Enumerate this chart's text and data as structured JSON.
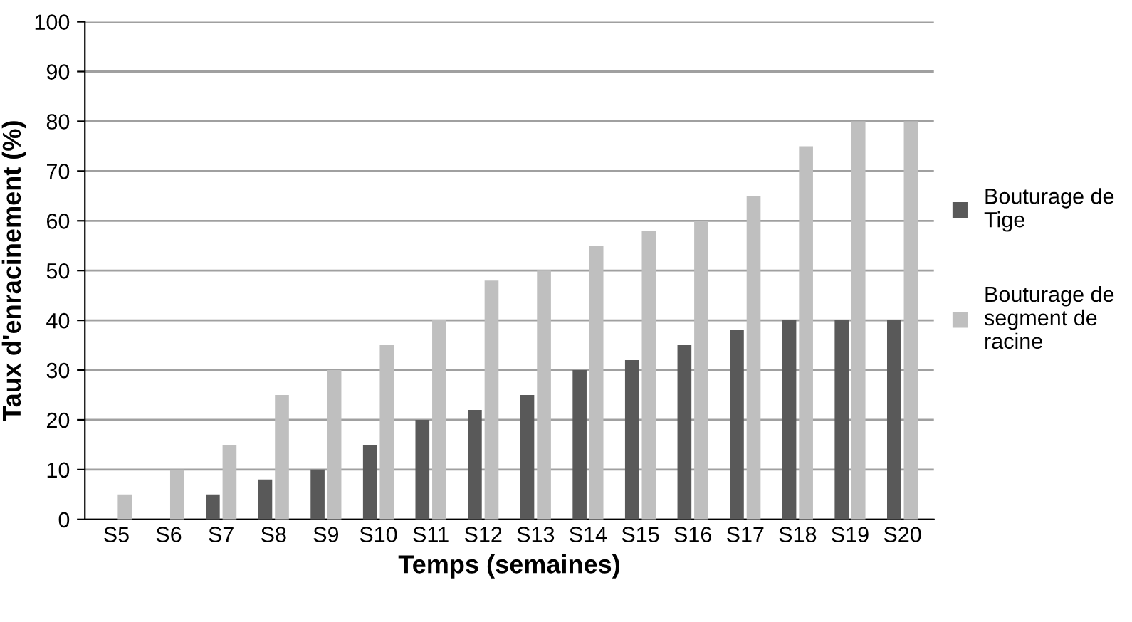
{
  "chart_data": {
    "type": "bar",
    "xlabel": "Temps (semaines)",
    "ylabel": "Taux d'enracinement (%)",
    "categories": [
      "S5",
      "S6",
      "S7",
      "S8",
      "S9",
      "S10",
      "S11",
      "S12",
      "S13",
      "S14",
      "S15",
      "S16",
      "S17",
      "S18",
      "S19",
      "S20"
    ],
    "series": [
      {
        "name": "Bouturage de Tige",
        "color": "#595959",
        "values": [
          0,
          0,
          5,
          8,
          10,
          15,
          20,
          22,
          25,
          30,
          32,
          35,
          38,
          40,
          40,
          40
        ]
      },
      {
        "name": "Bouturage de segment de racine",
        "color": "#bfbfbf",
        "values": [
          5,
          10,
          15,
          25,
          30,
          35,
          40,
          48,
          50,
          55,
          58,
          60,
          65,
          75,
          80,
          80
        ]
      }
    ],
    "ylim": [
      0,
      100
    ],
    "yticks": [
      0,
      10,
      20,
      30,
      40,
      50,
      60,
      70,
      80,
      90,
      100
    ],
    "grid": "y",
    "legend": "right"
  }
}
